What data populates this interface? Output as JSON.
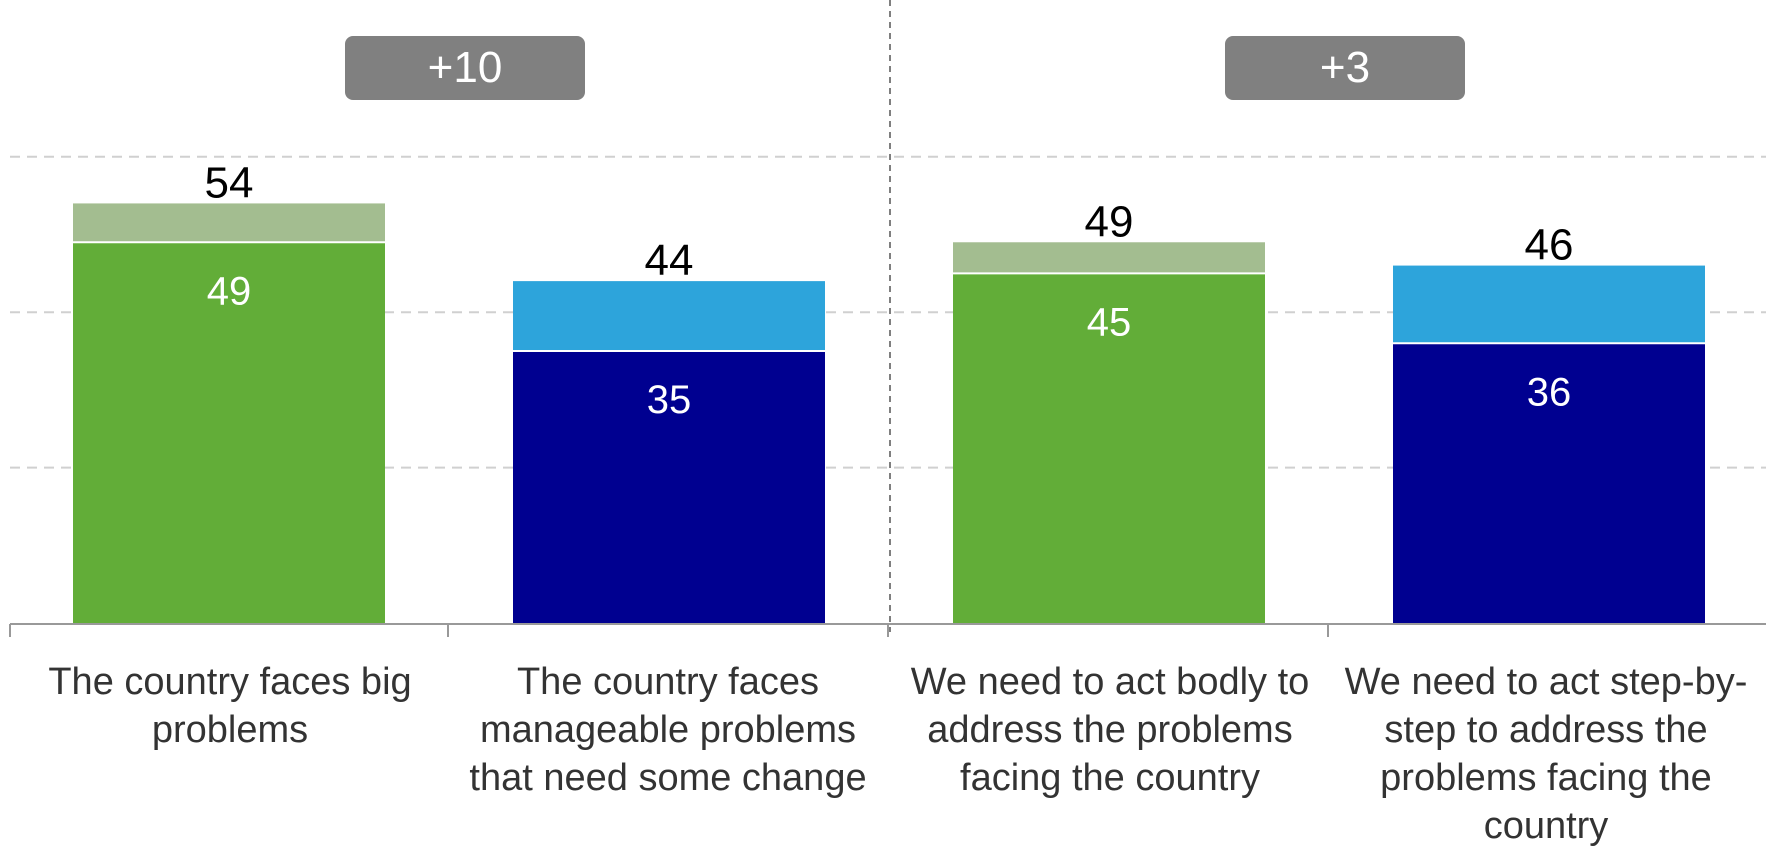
{
  "chart_data": {
    "type": "bar",
    "stacked": true,
    "categories": [
      "The country faces big problems",
      "The country faces manageable problems that need some change",
      "We need to act bodly to address the problems facing the country",
      "We need to act step-by-step to address the problems facing the country"
    ],
    "totals": [
      54,
      44,
      49,
      46
    ],
    "base_values": [
      49,
      35,
      45,
      36
    ],
    "differences": [
      "+10",
      "+3"
    ],
    "colors": {
      "green_base": "#62AD38",
      "green_top": "#A3BD90",
      "blue_base": "#000090",
      "blue_top": "#2DA4DB"
    },
    "ylim": [
      0,
      60
    ],
    "grid": true
  }
}
